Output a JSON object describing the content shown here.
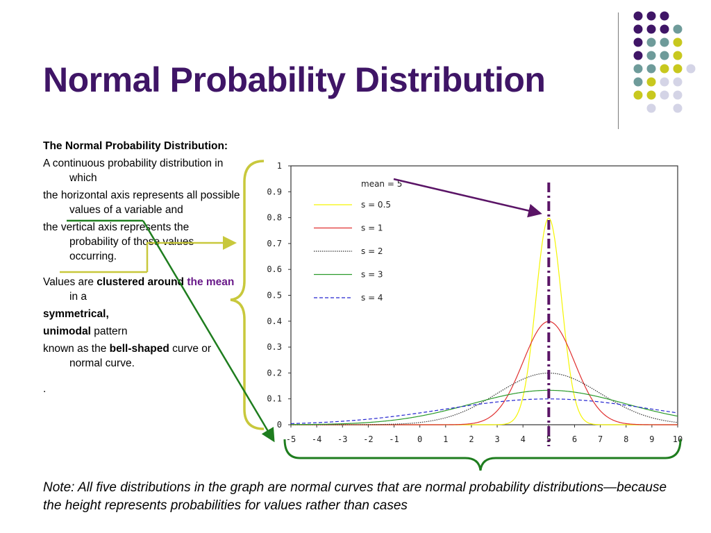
{
  "slide": {
    "title": "Normal Probability Distribution",
    "paragraphs": [
      {
        "segments": [
          {
            "text": "The Normal Probability Distribution:",
            "style": "bold"
          }
        ]
      },
      {
        "segments": [
          {
            "text": "A continuous probability distribution in which",
            "style": "normal"
          }
        ]
      },
      {
        "segments": [
          {
            "text": "the horizontal axis represents all possible values of a variable and",
            "style": "normal"
          }
        ]
      },
      {
        "segments": [
          {
            "text": "the vertical axis represents the probability of those values occurring.",
            "style": "normal"
          }
        ]
      },
      {
        "segments": [
          {
            "text": "Values are ",
            "style": "normal"
          },
          {
            "text": "clustered around ",
            "style": "bold"
          },
          {
            "text": "the mean",
            "style": "purple"
          },
          {
            "text": " in a",
            "style": "normal"
          }
        ]
      },
      {
        "segments": [
          {
            "text": "symmetrical,",
            "style": "bold"
          }
        ]
      },
      {
        "segments": [
          {
            "text": "unimodal",
            "style": "bold"
          },
          {
            "text": " pattern",
            "style": "normal"
          }
        ]
      },
      {
        "segments": [
          {
            "text": "known as the ",
            "style": "normal"
          },
          {
            "text": "bell-shaped",
            "style": "bold"
          },
          {
            "text": " curve or normal curve.",
            "style": "normal"
          }
        ]
      },
      {
        "segments": [
          {
            "text": ".",
            "style": "normal"
          }
        ]
      }
    ],
    "note": "Note:  All five distributions in the graph are normal curves that are normal probability distributions—because the height represents probabilities for values rather than cases"
  },
  "colors": {
    "title": "#3f1566",
    "dot_purple": "#3f1566",
    "dot_teal": "#6e9b9a",
    "dot_yellow": "#c8c81e",
    "dot_lavender": "#d4d4e6",
    "bracket_yellow": "#c8c83c",
    "arrow_green": "#1e7d1e",
    "arrow_purple": "#5a1466",
    "mean_line": "#5a1466"
  },
  "chart_data": {
    "type": "line",
    "x_ticks": [
      "-5",
      "-4",
      "-3",
      "-2",
      "-1",
      "0",
      "1",
      "2",
      "3",
      "4",
      "5",
      "6",
      "7",
      "8",
      "9",
      "10"
    ],
    "y_ticks": [
      "0",
      "0.1",
      "0.2",
      "0.3",
      "0.4",
      "0.5",
      "0.6",
      "0.7",
      "0.8",
      "0.9",
      "1"
    ],
    "xlim": [
      -5,
      10
    ],
    "ylim": [
      0,
      1
    ],
    "grid": false,
    "legend_position": "top-left",
    "legend_header": "mean = 5",
    "mean": 5,
    "series": [
      {
        "name": "s = 0.5",
        "color": "#f5f500",
        "dash": "solid",
        "sd": 0.5
      },
      {
        "name": "s = 1",
        "color": "#e03030",
        "dash": "solid",
        "sd": 1
      },
      {
        "name": "s = 2",
        "color": "#333333",
        "dash": "dotted",
        "sd": 2
      },
      {
        "name": "s = 3",
        "color": "#2a9a2a",
        "dash": "solid",
        "sd": 3
      },
      {
        "name": "s = 4",
        "color": "#2424d0",
        "dash": "dashed",
        "sd": 4
      }
    ]
  }
}
